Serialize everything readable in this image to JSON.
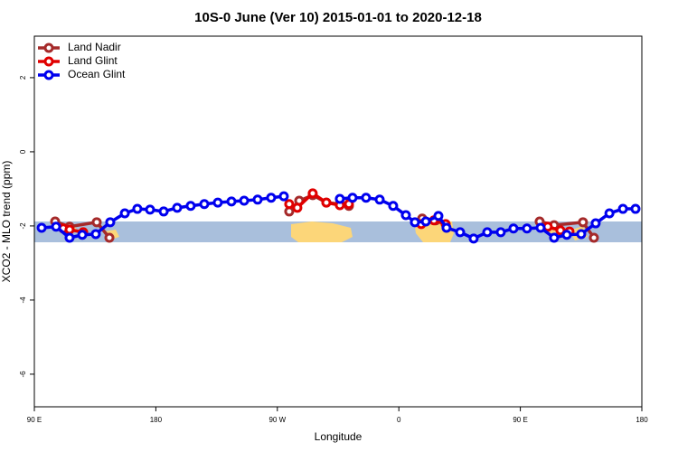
{
  "chart_data": {
    "type": "line",
    "title": "10S-0 June (Ver 10)   2015-01-01 to 2020-12-18",
    "xlabel": "Longitude",
    "ylabel": "XCO2 - MLO trend (ppm)",
    "xlim": [
      90,
      540
    ],
    "xticks": [
      {
        "value": 90,
        "label": "90 E"
      },
      180,
      {
        "value": 270,
        "label": "90 W"
      },
      {
        "value": 360,
        "label": "0"
      },
      {
        "value": 450,
        "label": "90 E"
      },
      {
        "value": 540,
        "label": "180"
      }
    ],
    "ylim": [
      -6.88,
      3.12
    ],
    "yticks": [
      -6,
      -4,
      -2,
      0,
      2
    ],
    "legend": "upper left",
    "series": [
      {
        "name": "Land Nadir",
        "color": "#a52a2a",
        "x": [
          105.4,
          116.1,
          136.2,
          145.6,
          200,
          278.8,
          286.2,
          296.2,
          306.3,
          316.3,
          323.0,
          350,
          377.3,
          387.3,
          420,
          464.3,
          475.0,
          496.4,
          504.5
        ],
        "values": [
          -1.88,
          -2.02,
          -1.9,
          -2.32,
          null,
          -1.61,
          -1.32,
          -1.17,
          -1.37,
          -1.41,
          -1.46,
          null,
          -1.8,
          -1.85,
          null,
          -1.88,
          -1.98,
          -1.9,
          -2.32
        ]
      },
      {
        "name": "Land Glint",
        "color": "#e00000",
        "x": [
          111.4,
          116.1,
          126.2,
          200,
          278.8,
          284.8,
          296.2,
          306.3,
          316.3,
          323.0,
          350,
          376.6,
          386.0,
          394.7,
          420,
          470.3,
          479.7,
          486.4
        ],
        "values": [
          -2.07,
          -2.1,
          -2.17,
          null,
          -1.41,
          -1.51,
          -1.12,
          -1.37,
          -1.44,
          -1.41,
          null,
          -1.95,
          -1.85,
          -1.95,
          null,
          -2.02,
          -2.12,
          -2.15
        ]
      },
      {
        "name": "Ocean Glint",
        "color": "#0000ee",
        "x": [
          95.4,
          106.1,
          116.1,
          125.5,
          135.5,
          146.2,
          157.0,
          166.3,
          175.7,
          185.8,
          195.8,
          205.8,
          215.9,
          225.9,
          236.0,
          245.4,
          255.4,
          265.4,
          274.8,
          295,
          316.3,
          325.7,
          335.7,
          345.8,
          355.8,
          365.2,
          371.9,
          380.0,
          389.3,
          395.3,
          405.4,
          415.4,
          425.5,
          435.5,
          444.9,
          454.9,
          465.0,
          475.0,
          484.4,
          495.1,
          505.8,
          516.0,
          526.0,
          535.3
        ],
        "values": [
          -2.05,
          -2.02,
          -2.32,
          -2.24,
          -2.22,
          -1.9,
          -1.66,
          -1.54,
          -1.56,
          -1.61,
          -1.51,
          -1.46,
          -1.41,
          -1.37,
          -1.34,
          -1.32,
          -1.29,
          -1.24,
          -1.2,
          null,
          -1.27,
          -1.24,
          -1.24,
          -1.29,
          -1.46,
          -1.71,
          -1.9,
          -1.88,
          -1.73,
          -2.05,
          -2.17,
          -2.34,
          -2.17,
          -2.17,
          -2.07,
          -2.07,
          -2.05,
          -2.32,
          -2.24,
          -2.22,
          -1.93,
          -1.66,
          -1.54,
          -1.54
        ]
      }
    ]
  }
}
